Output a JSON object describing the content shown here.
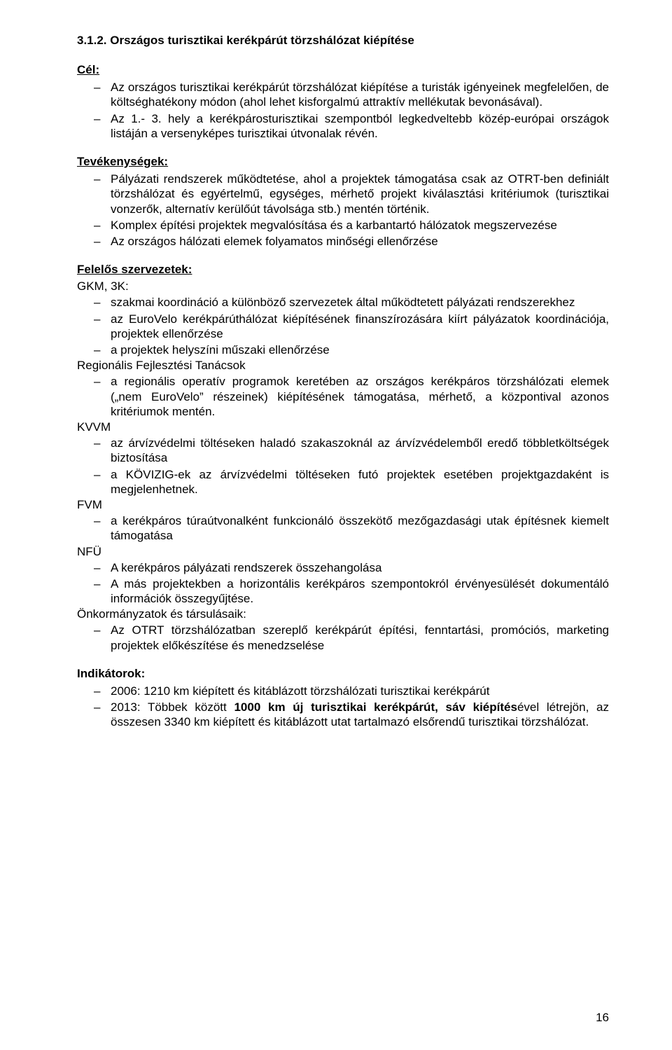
{
  "heading": "3.1.2. Országos turisztikai kerékpárút törzshálózat kiépítése",
  "labels": {
    "cel": "Cél:",
    "tevekenysegek": "Tevékenységek:",
    "felelos": "Felelős szervezetek:",
    "indikatorok": "Indikátorok:"
  },
  "cel_items": [
    "Az országos turisztikai kerékpárút törzshálózat kiépítése a turisták igényeinek megfelelően, de költséghatékony módon (ahol lehet kisforgalmú attraktív mellékutak bevonásával).",
    "Az 1.- 3. hely a kerékpárosturisztikai szempontból legkedveltebb közép-európai országok listáján a versenyképes turisztikai útvonalak révén."
  ],
  "tev_items": [
    "Pályázati rendszerek működtetése, ahol a projektek támogatása csak az OTRT-ben definiált törzshálózat és egyértelmű, egységes, mérhető projekt kiválasztási kritériumok (turisztikai vonzerők, alternatív kerülőút távolsága stb.) mentén történik.",
    "Komplex építési projektek megvalósítása és a karbantartó hálózatok megszervezése",
    "Az országos hálózati elemek folyamatos minőségi ellenőrzése"
  ],
  "felelos_groups": [
    {
      "head": "GKM, 3K:",
      "items": [
        "szakmai koordináció a különböző szervezetek által működtetett pályázati rendszerekhez",
        "az EuroVelo kerékpárúthálózat kiépítésének finanszírozására kiírt pályázatok koordinációja, projektek ellenőrzése",
        "a projektek helyszíni műszaki ellenőrzése"
      ]
    },
    {
      "head": "Regionális Fejlesztési Tanácsok",
      "items": [
        "a regionális operatív programok keretében az országos kerékpáros törzshálózati elemek („nem EuroVelo” részeinek) kiépítésének támogatása, mérhető, a központival azonos kritériumok mentén."
      ]
    },
    {
      "head": "KVVM",
      "items": [
        "az árvízvédelmi töltéseken haladó szakaszoknál az árvízvédelemből eredő többletköltségek biztosítása",
        "a KÖVIZIG-ek az árvízvédelmi töltéseken futó projektek esetében projektgazdaként is megjelenhetnek."
      ]
    },
    {
      "head": "FVM",
      "items": [
        "a kerékpáros túraútvonalként funkcionáló összekötő mezőgazdasági utak építésnek kiemelt támogatása"
      ]
    },
    {
      "head": "NFÜ",
      "items": [
        "A kerékpáros pályázati rendszerek összehangolása",
        "A más projektekben a horizontális kerékpáros szempontokról érvényesülését dokumentáló információk összegyűjtése."
      ]
    },
    {
      "head": "Önkormányzatok és társulásaik:",
      "items": [
        "Az OTRT törzshálózatban szereplő kerékpárút építési, fenntartási, promóciós, marketing projektek előkészítése és menedzselése"
      ]
    }
  ],
  "indikator_items_html": [
    "2006: 1210 km kiépített és kitáblázott törzshálózati turisztikai kerékpárút",
    "2013: Többek között <b>1000 km új turisztikai kerékpárút, sáv kiépítés</b>ével létrejön, az összesen 3340 km kiépített és kitáblázott utat tartalmazó elsőrendű turisztikai törzshálózat."
  ],
  "page_number": "16"
}
